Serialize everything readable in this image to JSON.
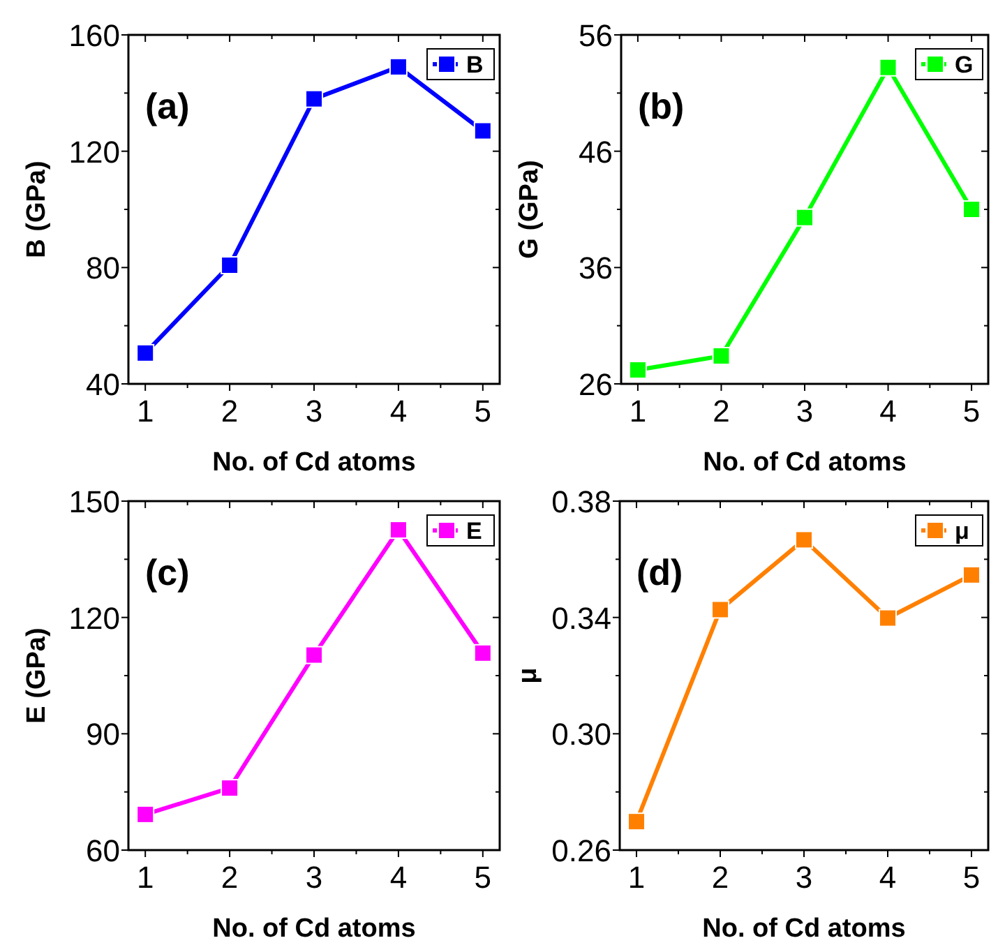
{
  "chart_data": [
    {
      "type": "line",
      "xlabel": "No. of Cd atoms",
      "ylabel": "B (GPa)",
      "x": [
        1,
        2,
        3,
        4,
        5
      ],
      "xlim": [
        0.8,
        5.2
      ],
      "xticks": [
        1,
        2,
        3,
        4,
        5
      ],
      "ylim": [
        40,
        160
      ],
      "yticks": [
        40,
        80,
        120,
        160
      ],
      "marker": "square",
      "line_style": "solid",
      "legend": "top right",
      "grid": false,
      "annotations": [
        "(a)"
      ],
      "series": [
        {
          "name": "B",
          "color": "#0000ff",
          "values": [
            50.6,
            80.8,
            138,
            149,
            127
          ]
        }
      ]
    },
    {
      "type": "line",
      "xlabel": "No. of Cd atoms",
      "ylabel": "G (GPa)",
      "x": [
        1,
        2,
        3,
        4,
        5
      ],
      "xlim": [
        0.8,
        5.2
      ],
      "xticks": [
        1,
        2,
        3,
        4,
        5
      ],
      "ylim": [
        26,
        56
      ],
      "yticks": [
        26,
        36,
        46,
        56
      ],
      "marker": "square",
      "line_style": "solid",
      "legend": "top right",
      "grid": false,
      "annotations": [
        "(b)"
      ],
      "series": [
        {
          "name": "G",
          "color": "#00ff00",
          "values": [
            27.2,
            28.4,
            40.3,
            53.2,
            41.0
          ]
        }
      ]
    },
    {
      "type": "line",
      "xlabel": "No. of Cd atoms",
      "ylabel": "E (GPa)",
      "x": [
        1,
        2,
        3,
        4,
        5
      ],
      "xlim": [
        0.8,
        5.2
      ],
      "xticks": [
        1,
        2,
        3,
        4,
        5
      ],
      "ylim": [
        60,
        150
      ],
      "yticks": [
        60,
        90,
        120,
        150
      ],
      "marker": "square",
      "line_style": "solid",
      "legend": "top right",
      "grid": false,
      "annotations": [
        "(c)"
      ],
      "series": [
        {
          "name": "E",
          "color": "#ff00ff",
          "values": [
            69.2,
            76,
            110.3,
            142.6,
            110.8
          ]
        }
      ]
    },
    {
      "type": "line",
      "xlabel": "No. of Cd atoms",
      "ylabel": "μ",
      "x": [
        1,
        2,
        3,
        4,
        5
      ],
      "xlim": [
        0.8,
        5.2
      ],
      "xticks": [
        1,
        2,
        3,
        4,
        5
      ],
      "ylim": [
        0.26,
        0.38
      ],
      "yticks": [
        {
          "value": 0.26,
          "label": "0.26"
        },
        {
          "value": 0.3,
          "label": "0.30"
        },
        {
          "value": 0.34,
          "label": "0.34"
        },
        {
          "value": 0.38,
          "label": "0.38"
        }
      ],
      "marker": "square",
      "line_style": "solid",
      "legend": "top right",
      "grid": false,
      "annotations": [
        "(d)"
      ],
      "series": [
        {
          "name": "μ",
          "color": "#ff8000",
          "values": [
            0.2698,
            0.3427,
            0.3667,
            0.3398,
            0.3546
          ]
        }
      ]
    }
  ]
}
